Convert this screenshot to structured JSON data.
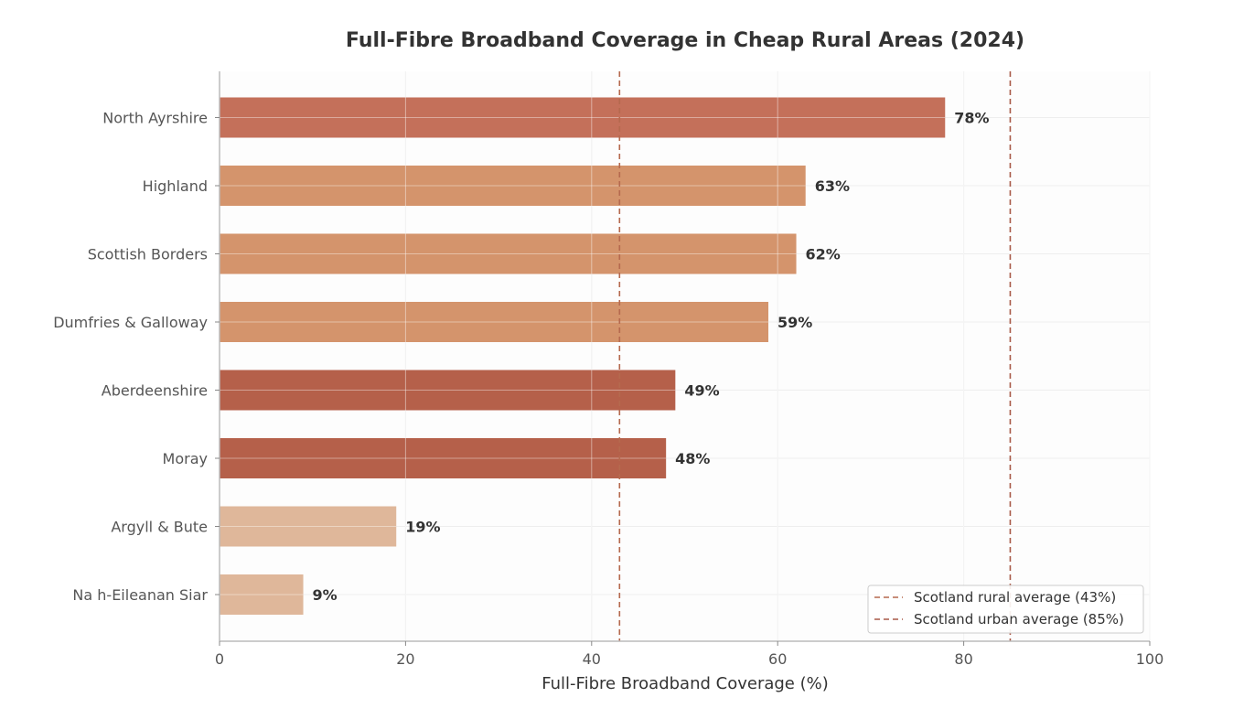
{
  "chart_data": {
    "type": "bar",
    "orientation": "horizontal",
    "title": "Full-Fibre Broadband Coverage in Cheap Rural Areas (2024)",
    "xlabel": "Full-Fibre Broadband Coverage (%)",
    "ylabel": "",
    "xlim": [
      0,
      100
    ],
    "xticks": [
      0,
      20,
      40,
      60,
      80,
      100
    ],
    "grid": true,
    "categories": [
      "North Ayrshire",
      "Highland",
      "Scottish Borders",
      "Dumfries & Galloway",
      "Aberdeenshire",
      "Moray",
      "Argyll & Bute",
      "Na h-Eileanan Siar"
    ],
    "values": [
      78,
      63,
      62,
      59,
      49,
      48,
      19,
      9
    ],
    "value_labels": [
      "78%",
      "63%",
      "62%",
      "59%",
      "49%",
      "48%",
      "19%",
      "9%"
    ],
    "bar_colors": [
      "#c4705a",
      "#d4946c",
      "#d4946c",
      "#d4946c",
      "#b5604a",
      "#b5604a",
      "#dfb79a",
      "#dfb79a"
    ],
    "reference_lines": [
      {
        "name": "Scotland rural average (43%)",
        "value": 43,
        "color": "#b5694e",
        "style": "dashed"
      },
      {
        "name": "Scotland urban average (85%)",
        "value": 85,
        "color": "#a85a48",
        "style": "dashed"
      }
    ],
    "legend_position": "lower-right"
  }
}
